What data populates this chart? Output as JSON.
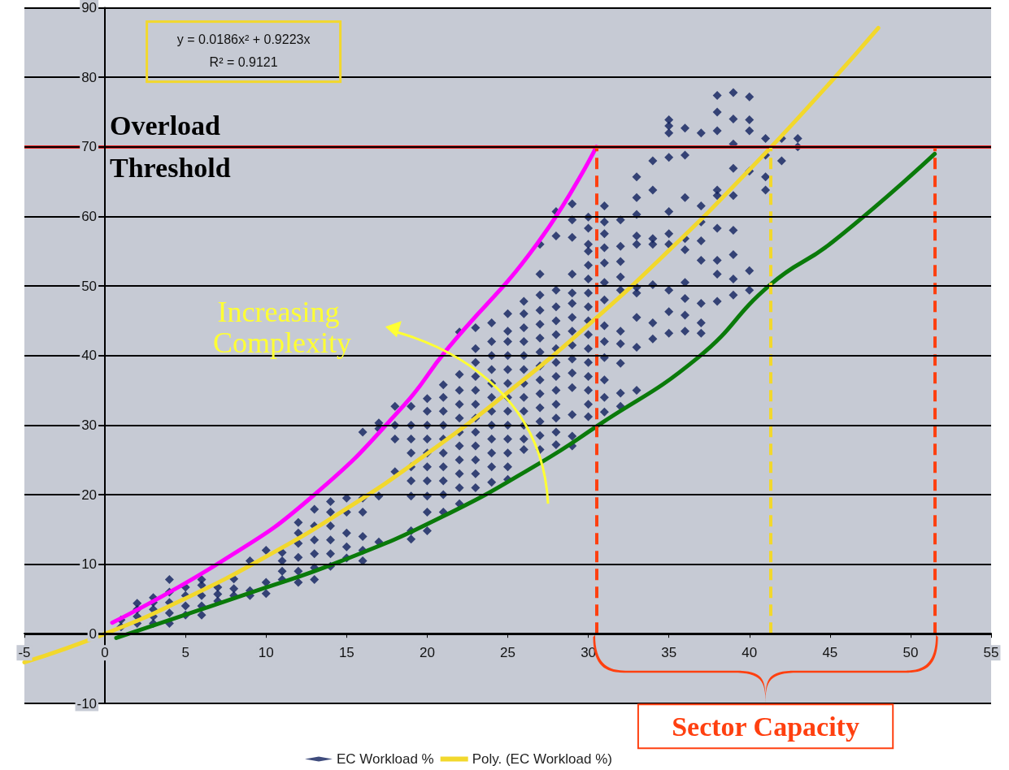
{
  "chart_data": {
    "type": "scatter",
    "xlim": [
      -5,
      55
    ],
    "ylim": [
      -10,
      90
    ],
    "xticks": [
      -5,
      0,
      5,
      10,
      15,
      20,
      25,
      30,
      35,
      40,
      45,
      50,
      55
    ],
    "yticks": [
      -10,
      0,
      10,
      20,
      30,
      40,
      50,
      60,
      70,
      80,
      90
    ],
    "grid": "y",
    "legend": "bottom",
    "marker": "diamond",
    "series": [
      {
        "name": "EC Workload %",
        "type": "scatter",
        "color": "#0f1f5c",
        "x": [
          1,
          1,
          2,
          2,
          2,
          2,
          3,
          3,
          3,
          3,
          3,
          4,
          4,
          4,
          4,
          4,
          5,
          5,
          5,
          5,
          6,
          6,
          6,
          6,
          6,
          7,
          7,
          7,
          8,
          8,
          8,
          9,
          9,
          9,
          10,
          10,
          10,
          11,
          11,
          11,
          11,
          12,
          12,
          12,
          12,
          12,
          12,
          13,
          13,
          13,
          13,
          13,
          13,
          14,
          14,
          14,
          14,
          14,
          14,
          15,
          15,
          15,
          15,
          15,
          16,
          16,
          16,
          16,
          16,
          16,
          17,
          17,
          17,
          17,
          18,
          18,
          18,
          18,
          19,
          19,
          19,
          19,
          19,
          19,
          19,
          19,
          19,
          20,
          20,
          20,
          20,
          20,
          20,
          20,
          20,
          20,
          20,
          21,
          21,
          21,
          21,
          21,
          21,
          21,
          21,
          21,
          21,
          22,
          22,
          22,
          22,
          22,
          22,
          22,
          22,
          22,
          22,
          22,
          23,
          23,
          23,
          23,
          23,
          23,
          23,
          23,
          23,
          23,
          23,
          23,
          24,
          24,
          24,
          24,
          24,
          24,
          24,
          24,
          24,
          24,
          24,
          24,
          25,
          25,
          25,
          25,
          25,
          25,
          25,
          25,
          25,
          25,
          25,
          25,
          25,
          26,
          26,
          26,
          26,
          26,
          26,
          26,
          26,
          26,
          26,
          26,
          26,
          27,
          27,
          27,
          27,
          27,
          27,
          27,
          27,
          27,
          27,
          27,
          27,
          27,
          27,
          28,
          28,
          28,
          28,
          28,
          28,
          28,
          28,
          28,
          28,
          28,
          28,
          28,
          28,
          29,
          29,
          29,
          29,
          29,
          29,
          29,
          29,
          29,
          29,
          29,
          29,
          29,
          29,
          29,
          30,
          30,
          30,
          30,
          30,
          30,
          30,
          30,
          30,
          30,
          30,
          30,
          30,
          30,
          30,
          30,
          31,
          31,
          31,
          31,
          31,
          31,
          31,
          31,
          31,
          31,
          31,
          31,
          31,
          32,
          32,
          32,
          32,
          32,
          32,
          32,
          32,
          32,
          32,
          33,
          33,
          33,
          33,
          33,
          33,
          33,
          33,
          33,
          33,
          34,
          34,
          34,
          34,
          34,
          34,
          34,
          35,
          35,
          35,
          35,
          35,
          35,
          35,
          35,
          35,
          35,
          36,
          36,
          36,
          36,
          36,
          36,
          36,
          36,
          36,
          37,
          37,
          37,
          37,
          37,
          37,
          37,
          37,
          38,
          38,
          38,
          38,
          38,
          38,
          38,
          38,
          38,
          39,
          39,
          39,
          39,
          39,
          39,
          39,
          39,
          39,
          40,
          40,
          40,
          40,
          40,
          40,
          41,
          41,
          41,
          41,
          42,
          42,
          43,
          43
        ],
        "values": [
          1,
          2,
          1.5,
          2.5,
          3.5,
          4.4,
          1.5,
          2.5,
          3.5,
          4.5,
          5.2,
          1.5,
          3,
          4.5,
          6,
          7.8,
          2.7,
          4,
          5.5,
          6.7,
          2.7,
          4,
          5.5,
          7,
          7.8,
          4.7,
          5.7,
          6.7,
          5.5,
          6.5,
          7.9,
          5.5,
          6.2,
          10.5,
          5.8,
          7.4,
          12,
          7.8,
          9,
          10.5,
          11.7,
          7.4,
          9,
          11,
          13,
          14.5,
          16,
          7.8,
          9.5,
          11.5,
          13.5,
          15.5,
          17.9,
          9.7,
          11.5,
          13.5,
          15.5,
          17.5,
          19,
          10.9,
          12.5,
          14.5,
          17.5,
          19.5,
          10.5,
          12,
          14,
          17.5,
          19.5,
          29,
          13.2,
          19.8,
          29.5,
          30.3,
          23.3,
          28,
          30,
          32.7,
          13.6,
          14.8,
          19.8,
          22,
          24,
          26,
          28,
          30,
          32.7,
          14.8,
          17.5,
          19.8,
          22,
          24,
          26,
          28,
          30,
          32,
          33.8,
          17.5,
          20,
          22,
          24,
          26,
          28,
          30,
          32,
          34,
          35.8,
          18.7,
          21,
          23,
          25,
          27,
          29,
          31,
          33,
          35,
          37.3,
          43.4,
          21,
          23,
          25,
          27,
          29,
          31,
          33,
          35,
          37,
          39,
          41,
          44,
          21.8,
          24,
          26,
          28,
          30,
          32,
          34,
          36,
          38,
          40,
          42,
          44.7,
          22.2,
          24,
          26,
          28,
          30,
          32,
          34,
          36,
          38,
          40,
          42,
          43.5,
          46,
          26.5,
          28,
          30,
          32,
          34,
          36,
          38,
          40,
          42,
          44,
          46,
          47.8,
          26.5,
          28.5,
          30.5,
          32.5,
          34.5,
          36.5,
          38.5,
          40.5,
          42.5,
          44.5,
          46.5,
          48.7,
          51.7,
          56,
          27.2,
          29,
          31,
          33,
          35,
          37,
          39,
          41,
          43,
          45,
          47,
          49.4,
          57.2,
          60.7,
          27,
          28.4,
          31.5,
          35.4,
          37.5,
          39.5,
          41.5,
          43.5,
          45.5,
          47.5,
          49,
          51.7,
          57,
          59.5,
          61.8,
          31.2,
          33,
          35,
          37,
          39,
          41,
          43,
          45,
          47,
          49,
          51,
          53,
          55,
          56,
          58.3,
          59.9,
          31.9,
          34,
          36.5,
          39.7,
          42,
          44.3,
          48,
          50.5,
          53.3,
          55.5,
          57.5,
          59.2,
          61.5,
          32.7,
          34.6,
          38.9,
          41.7,
          43.5,
          49.4,
          51.3,
          53.5,
          55.7,
          59.5,
          35,
          41.2,
          45.5,
          49,
          49.8,
          56,
          57.2,
          60.3,
          62.7,
          65.7,
          42.4,
          44.7,
          50.2,
          56,
          56.8,
          63.8,
          68,
          43.2,
          46.3,
          49.4,
          56,
          57.5,
          60.7,
          68.5,
          72,
          73,
          73.9,
          43.5,
          45.8,
          48.2,
          50.5,
          55.2,
          56.8,
          62.7,
          68.8,
          72.7,
          43.2,
          44.7,
          47.5,
          53.7,
          56.5,
          59.2,
          61.5,
          72,
          47.8,
          51.7,
          53.7,
          58.3,
          63,
          63.8,
          72.3,
          75,
          77.4,
          48.7,
          51,
          54.5,
          58,
          63,
          66.9,
          70.4,
          74,
          77.8,
          49.4,
          52.2,
          66.5,
          72.3,
          73.9,
          77.2,
          63.8,
          65.7,
          68.8,
          71.2,
          68,
          71.2,
          70,
          71.2
        ]
      },
      {
        "name": "Poly. (EC Workload %)",
        "type": "line",
        "marker": "none",
        "color": "#f2d82c",
        "x": [
          -5,
          0,
          5,
          10,
          15,
          20,
          25,
          30,
          35,
          40,
          45,
          48
        ],
        "values": [
          -4.1,
          0,
          5.1,
          11.1,
          18,
          25.9,
          34.7,
          44.4,
          55.1,
          66.7,
          79.2,
          87.1
        ]
      },
      {
        "type": "line",
        "marker": "none",
        "color": "#ff00ff",
        "x": [
          0.45,
          7.3,
          12.9,
          18.5,
          21.2,
          26.8,
          30.5
        ],
        "values": [
          1.6,
          10.5,
          19.8,
          32.7,
          40.8,
          56,
          70
        ]
      },
      {
        "type": "line",
        "marker": "none",
        "color": "#0a7a0a",
        "x": [
          0.7,
          8.9,
          14.7,
          21,
          27.1,
          30.5,
          36.8,
          41.3,
          45.2,
          51.5
        ],
        "values": [
          -0.6,
          5.8,
          10.5,
          16.9,
          24.7,
          29.8,
          39.7,
          50.2,
          56.4,
          69
        ]
      }
    ],
    "ref_lines": [
      {
        "axis": "y",
        "value": 70,
        "label": "Overload Threshold",
        "color": "#e82020",
        "line_style": "solid"
      },
      {
        "axis": "x",
        "value": 30.5,
        "color": "#ff4010",
        "line_style": "dashed"
      },
      {
        "axis": "x",
        "value": 41.3,
        "color": "#f2d82c",
        "line_style": "dashed"
      },
      {
        "axis": "x",
        "value": 51.5,
        "color": "#ff4010",
        "line_style": "dashed"
      }
    ],
    "annotations": [
      "y = 0.0186x² + 0.9223x",
      "R² = 0.9121",
      "Increasing Complexity",
      "Sector Capacity"
    ]
  }
}
